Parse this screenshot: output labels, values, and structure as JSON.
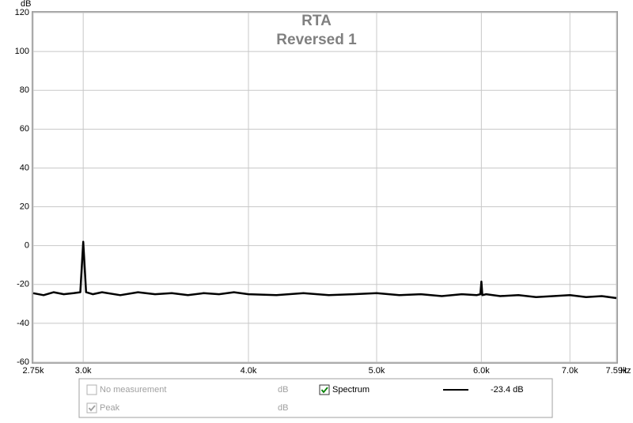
{
  "chart_data": {
    "type": "line",
    "title": "RTA",
    "subtitle": "Reversed 1",
    "y_label": "dB",
    "x_label": "Hz",
    "xscale": "log",
    "grid": true,
    "xlim": [
      2750,
      7590
    ],
    "ylim": [
      -60,
      120
    ],
    "xticks": [
      {
        "value": 2750,
        "label": "2.75k"
      },
      {
        "value": 3000,
        "label": "3.0k"
      },
      {
        "value": 4000,
        "label": "4.0k"
      },
      {
        "value": 5000,
        "label": "5.0k"
      },
      {
        "value": 6000,
        "label": "6.0k"
      },
      {
        "value": 7000,
        "label": "7.0k"
      },
      {
        "value": 7590,
        "label": "7.59k"
      }
    ],
    "yticks": [
      -60,
      -40,
      -20,
      0,
      20,
      40,
      60,
      80,
      100,
      120
    ],
    "series": [
      {
        "name": "Spectrum",
        "color": "#000000",
        "checked": true,
        "readout": {
          "value": -23.4,
          "label": "-23.4 dB"
        },
        "x": [
          2750,
          2800,
          2850,
          2900,
          2950,
          2985,
          3000,
          3015,
          3050,
          3100,
          3200,
          3300,
          3400,
          3500,
          3600,
          3700,
          3800,
          3900,
          4000,
          4200,
          4400,
          4600,
          4800,
          5000,
          5200,
          5400,
          5600,
          5800,
          5950,
          5990,
          6000,
          6010,
          6050,
          6200,
          6400,
          6600,
          6800,
          7000,
          7200,
          7400,
          7590
        ],
        "values": [
          -24.5,
          -25.5,
          -24,
          -25,
          -24.5,
          -24,
          2,
          -24,
          -25,
          -24,
          -25.5,
          -24,
          -25,
          -24.5,
          -25.5,
          -24.5,
          -25,
          -24,
          -25,
          -25.5,
          -24.5,
          -25.5,
          -25,
          -24.5,
          -25.5,
          -25,
          -26,
          -25,
          -25.5,
          -25,
          -18.5,
          -25.5,
          -25,
          -26,
          -25.5,
          -26.5,
          -26,
          -25.5,
          -26.5,
          -26,
          -27
        ]
      }
    ],
    "other_legend_entries": [
      {
        "name": "No measurement",
        "unit": "dB",
        "checked": false
      },
      {
        "name": "Peak",
        "unit": "dB",
        "checked": true
      }
    ]
  }
}
